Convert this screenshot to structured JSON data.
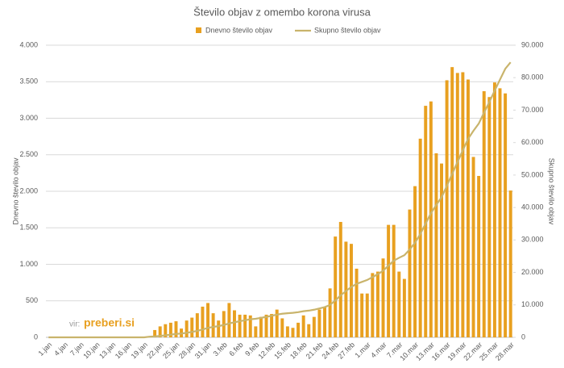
{
  "chart_data": {
    "type": "bar",
    "title": "Število objav z omembo korona virusa",
    "y_label": "Dnevno število objav",
    "y2_label": "Skupno število objav",
    "annotations": [
      "vir:",
      "preberi.si"
    ],
    "legend": "top",
    "grid": true,
    "categories": [
      "1.jan",
      null,
      null,
      "4.jan",
      null,
      null,
      "7.jan",
      null,
      null,
      "10.jan",
      null,
      null,
      "13.jan",
      null,
      null,
      "16.jan",
      null,
      null,
      "19.jan",
      null,
      null,
      "22.jan",
      null,
      null,
      "25.jan",
      null,
      null,
      "28.jan",
      null,
      null,
      "31.jan",
      null,
      null,
      "3.feb",
      null,
      null,
      "6.feb",
      null,
      null,
      "9.feb",
      null,
      null,
      "12.feb",
      null,
      null,
      "15.feb",
      null,
      null,
      "18.feb",
      null,
      null,
      "21.feb",
      null,
      null,
      "24.feb",
      null,
      null,
      "27.feb",
      null,
      null,
      "1.mar",
      null,
      null,
      "4.mar",
      null,
      null,
      "7.mar",
      null,
      null,
      "10.mar",
      null,
      null,
      "13.mar",
      null,
      null,
      "16.mar",
      null,
      null,
      "19.mar",
      null,
      null,
      "22.mar",
      null,
      null,
      "25.mar",
      null,
      null,
      "28.mar"
    ],
    "series": [
      {
        "name": "Dnevno število objav",
        "color": "#e8a020",
        "type": "bar",
        "values": [
          0,
          0,
          0,
          0,
          0,
          0,
          0,
          0,
          0,
          0,
          0,
          0,
          0,
          0,
          0,
          0,
          0,
          0,
          0,
          0,
          100,
          150,
          180,
          200,
          220,
          120,
          230,
          270,
          330,
          420,
          470,
          330,
          230,
          360,
          470,
          370,
          310,
          310,
          300,
          150,
          280,
          310,
          320,
          380,
          260,
          150,
          130,
          200,
          300,
          180,
          280,
          380,
          420,
          670,
          1380,
          1580,
          1310,
          1280,
          940,
          600,
          600,
          880,
          900,
          1080,
          1540,
          1540,
          900,
          800,
          1750,
          2070,
          2720,
          3170,
          3230,
          2520,
          2380,
          3520,
          3700,
          3620,
          3630,
          3530,
          2470,
          2210,
          3370,
          3290,
          3490,
          3410,
          3340,
          2010
        ]
      },
      {
        "name": "Skupno število objav",
        "color": "#c9b46c",
        "type": "line",
        "axis": "y2",
        "values": [
          0,
          0,
          0,
          0,
          0,
          0,
          0,
          0,
          0,
          0,
          0,
          0,
          0,
          0,
          0,
          0,
          0,
          0,
          0,
          200,
          300,
          450,
          630,
          830,
          1050,
          1170,
          1400,
          1670,
          2000,
          2420,
          2890,
          3220,
          3450,
          3810,
          4280,
          4650,
          4960,
          5270,
          5570,
          5720,
          6000,
          6310,
          6630,
          7010,
          7270,
          7420,
          7550,
          7750,
          8050,
          8230,
          8510,
          8890,
          9310,
          9980,
          11360,
          12940,
          14250,
          15530,
          16470,
          17070,
          17670,
          18550,
          19450,
          20530,
          22070,
          23610,
          24510,
          25310,
          27060,
          29130,
          31850,
          35020,
          38250,
          40770,
          43150,
          46670,
          50370,
          53990,
          57620,
          61150,
          63620,
          65830,
          69200,
          72490,
          75980,
          79390,
          82730,
          84740
        ]
      }
    ],
    "ylim": [
      0,
      4000
    ],
    "yticks": [
      0,
      500,
      {
        "value": 1000,
        "label": "1.000"
      },
      {
        "value": 1500,
        "label": "1.500"
      },
      {
        "value": 2000,
        "label": "2.000"
      },
      {
        "value": 2500,
        "label": "2.500"
      },
      {
        "value": 3000,
        "label": "3.000"
      },
      {
        "value": 3500,
        "label": "3.500"
      },
      {
        "value": 4000,
        "label": "4.000"
      }
    ],
    "y2lim": [
      0,
      90000
    ],
    "y2ticks": [
      0,
      {
        "value": 10000,
        "label": "10.000"
      },
      {
        "value": 20000,
        "label": "20.000"
      },
      {
        "value": 30000,
        "label": "30.000"
      },
      {
        "value": 40000,
        "label": "40.000"
      },
      {
        "value": 50000,
        "label": "50.000"
      },
      {
        "value": 60000,
        "label": "60.000"
      },
      {
        "value": 70000,
        "label": "70.000"
      },
      {
        "value": 80000,
        "label": "80.000"
      },
      {
        "value": 90000,
        "label": "90.000"
      }
    ]
  }
}
